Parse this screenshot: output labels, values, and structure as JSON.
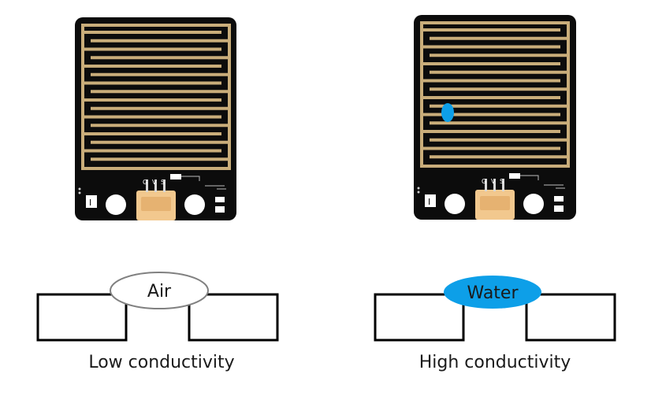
{
  "left_panel": {
    "medium_label": "Air",
    "caption": "Low conductivity",
    "pin_labels": [
      "G",
      "V",
      "S"
    ],
    "board_tag": "I",
    "medium_fill": "#ffffff",
    "medium_stroke": "#808080"
  },
  "right_panel": {
    "medium_label": "Water",
    "caption": "High conductivity",
    "pin_labels": [
      "G",
      "V",
      "S"
    ],
    "board_tag": "I",
    "medium_fill": "#0d9fe8",
    "water_drop_color": "#0d9fe8"
  },
  "colors": {
    "board": "#0c0c0c",
    "trace": "#c9ad7a",
    "connector": "#f2c88e",
    "outline": "#000000"
  }
}
